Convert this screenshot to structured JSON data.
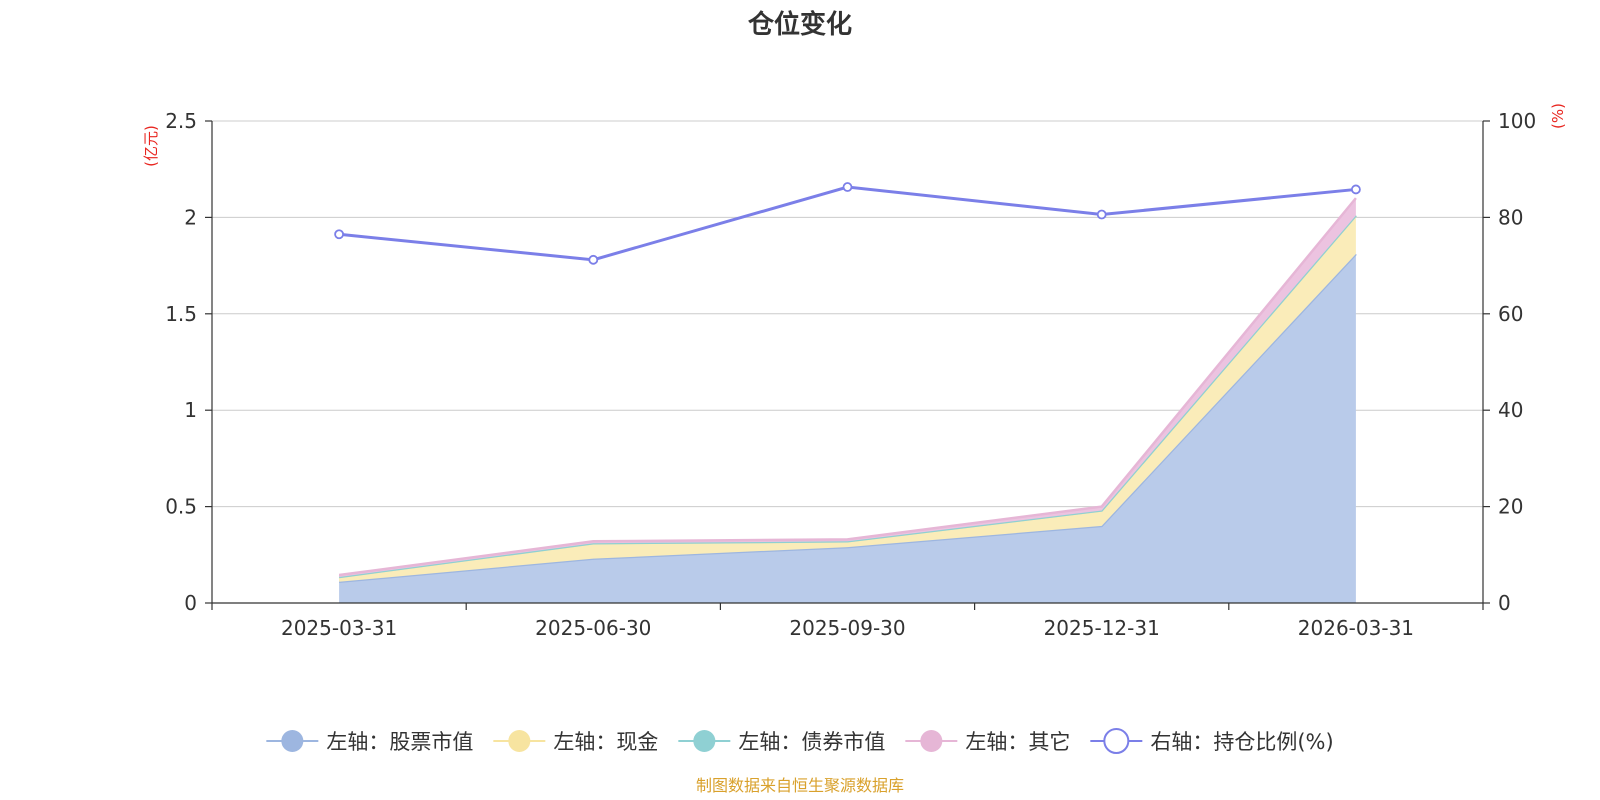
{
  "chart_data": {
    "type": "area",
    "title": "仓位变化",
    "categories": [
      "2025-03-31",
      "2025-06-30",
      "2025-09-30",
      "2025-12-31",
      "2026-03-31"
    ],
    "left_axis": {
      "unit": "(亿元)",
      "ylim": [
        0,
        2.5
      ],
      "ticks": [
        "0",
        "0.5",
        "1",
        "1.5",
        "2",
        "2.5"
      ],
      "tick_values": [
        0,
        0.5,
        1,
        1.5,
        2,
        2.5
      ]
    },
    "right_axis": {
      "unit": "(%)",
      "ylim": [
        0,
        100
      ],
      "ticks": [
        "0",
        "20",
        "40",
        "60",
        "80",
        "100"
      ],
      "tick_values": [
        0,
        20,
        40,
        60,
        80,
        100
      ]
    },
    "stacked_series": [
      {
        "name": "左轴：股票市值",
        "values": [
          0.11,
          0.23,
          0.29,
          0.4,
          1.81
        ],
        "fill": "#b9cbea",
        "stroke": "#9db6e0"
      },
      {
        "name": "左轴：现金",
        "values": [
          0.025,
          0.08,
          0.03,
          0.08,
          0.2
        ],
        "fill": "#faecb9",
        "stroke": "#f7e4a0"
      },
      {
        "name": "左轴：债券市值",
        "values": [
          0,
          0,
          0,
          0,
          0
        ],
        "fill": "#a6dcdc",
        "stroke": "#8fd0d3"
      },
      {
        "name": "左轴：其它",
        "values": [
          0.01,
          0.01,
          0.01,
          0.02,
          0.09
        ],
        "fill": "#ecc3e0",
        "stroke": "#e6b6d6"
      }
    ],
    "line_series": {
      "name": "右轴：持仓比例(%)",
      "values": [
        76.5,
        71.2,
        86.3,
        80.6,
        85.8
      ],
      "color": "#7b7fe8"
    },
    "grid": true,
    "legend_position": "bottom"
  },
  "colors": {
    "unit_label": "#e8251f",
    "source_text": "#d9a12c",
    "axis": "#333333",
    "grid": "#cccccc"
  },
  "footer": {
    "source": "制图数据来自恒生聚源数据库"
  }
}
